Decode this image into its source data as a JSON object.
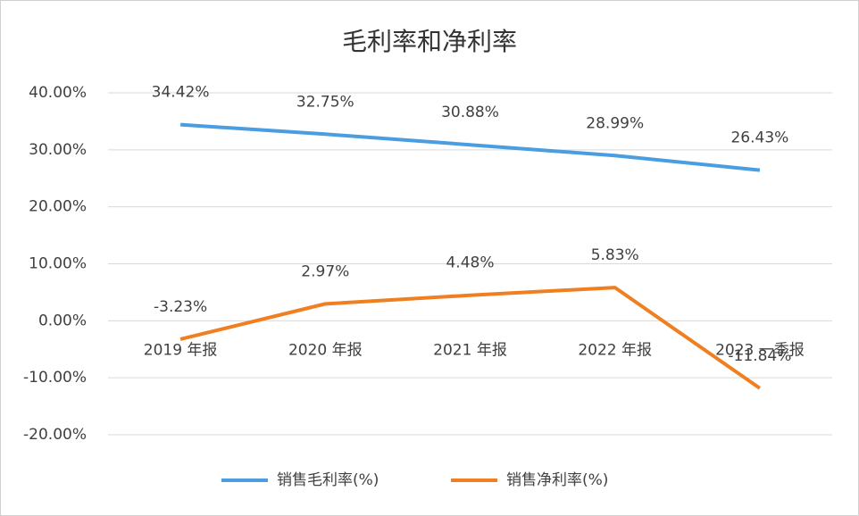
{
  "chart_data": {
    "type": "line",
    "title": "毛利率和净利率",
    "categories": [
      "2019 年报",
      "2020 年报",
      "2021 年报",
      "2022 年报",
      "2023 一季报"
    ],
    "series": [
      {
        "name": "销售毛利率(%)",
        "color": "#4a9de0",
        "values": [
          34.42,
          32.75,
          30.88,
          28.99,
          26.43
        ],
        "value_labels": [
          "34.42%",
          "32.75%",
          "30.88%",
          "28.99%",
          "26.43%"
        ]
      },
      {
        "name": "销售净利率(%)",
        "color": "#f07f22",
        "values": [
          -3.23,
          2.97,
          4.48,
          5.83,
          -11.84
        ],
        "value_labels": [
          "-3.23%",
          "2.97%",
          "4.48%",
          "5.83%",
          "-11.84%"
        ]
      }
    ],
    "ylim": [
      -20,
      40
    ],
    "yticks": [
      {
        "value": -20,
        "label": "-20.00%"
      },
      {
        "value": -10,
        "label": "-10.00%"
      },
      {
        "value": 0,
        "label": "0.00%"
      },
      {
        "value": 10,
        "label": "10.00%"
      },
      {
        "value": 20,
        "label": "20.00%"
      },
      {
        "value": 30,
        "label": "30.00%"
      },
      {
        "value": 40,
        "label": "40.00%"
      }
    ],
    "grid": true,
    "legend": "bottom"
  }
}
